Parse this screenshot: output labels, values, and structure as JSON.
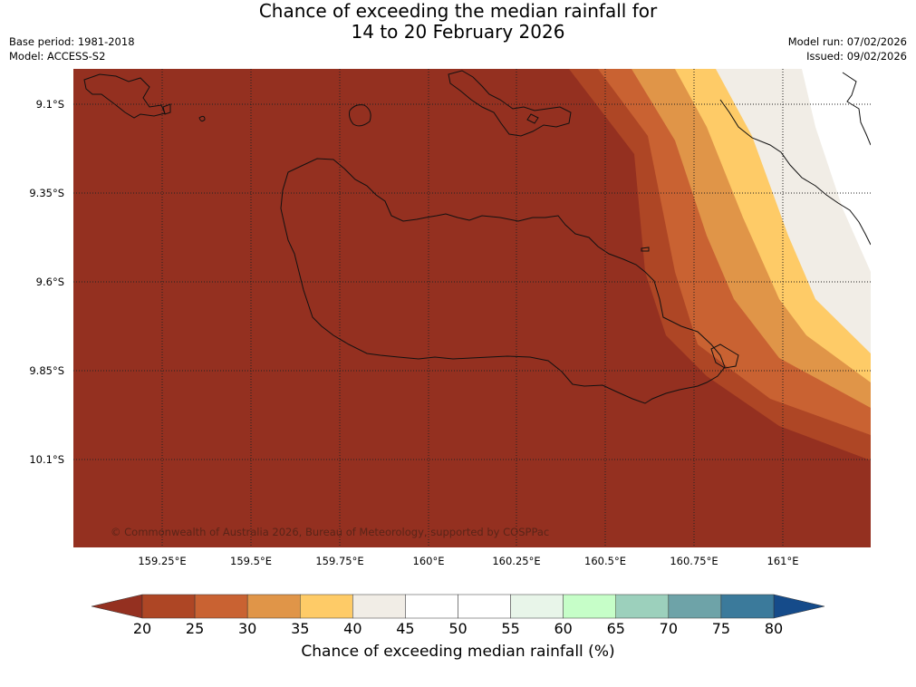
{
  "title": {
    "line1": "Chance of exceeding the median rainfall for",
    "line2": "14 to 20 February 2026"
  },
  "meta_left": {
    "base_period": "Base period: 1981-2018",
    "model": "Model: ACCESS-S2"
  },
  "meta_right": {
    "model_run": "Model run: 07/02/2026",
    "issued": "Issued: 09/02/2026"
  },
  "map": {
    "copyright": "© Commonwealth of Australia 2026, Bureau of Meteorology, supported by COSPPac",
    "lat_labels": [
      "9.1°S",
      "9.35°S",
      "9.6°S",
      "9.85°S",
      "10.1°S"
    ],
    "lon_labels": [
      "159.25°E",
      "159.5°E",
      "159.75°E",
      "160°E",
      "160.25°E",
      "160.5°E",
      "160.75°E",
      "161°E"
    ],
    "category_colors": {
      "below_20": "#943020",
      "20_25": "#ae4625",
      "25_30": "#c96232",
      "30_35": "#e09548",
      "35_40": "#fecb67",
      "40_45": "#f1ede6",
      "45_50": "#ffffff"
    }
  },
  "colorbar": {
    "ticks": [
      "20",
      "25",
      "30",
      "35",
      "40",
      "45",
      "50",
      "55",
      "60",
      "65",
      "70",
      "75",
      "80"
    ],
    "colors": [
      "#ae4625",
      "#c96232",
      "#e09548",
      "#fecb67",
      "#f1ede6",
      "#ffffff",
      "#ffffff",
      "#e8f5e9",
      "#c6fec8",
      "#9cd0bc",
      "#6ea3a8",
      "#3b7a9b"
    ],
    "low_color": "#943020",
    "high_color": "#154b8a",
    "label": "Chance of exceeding median rainfall (%)"
  }
}
